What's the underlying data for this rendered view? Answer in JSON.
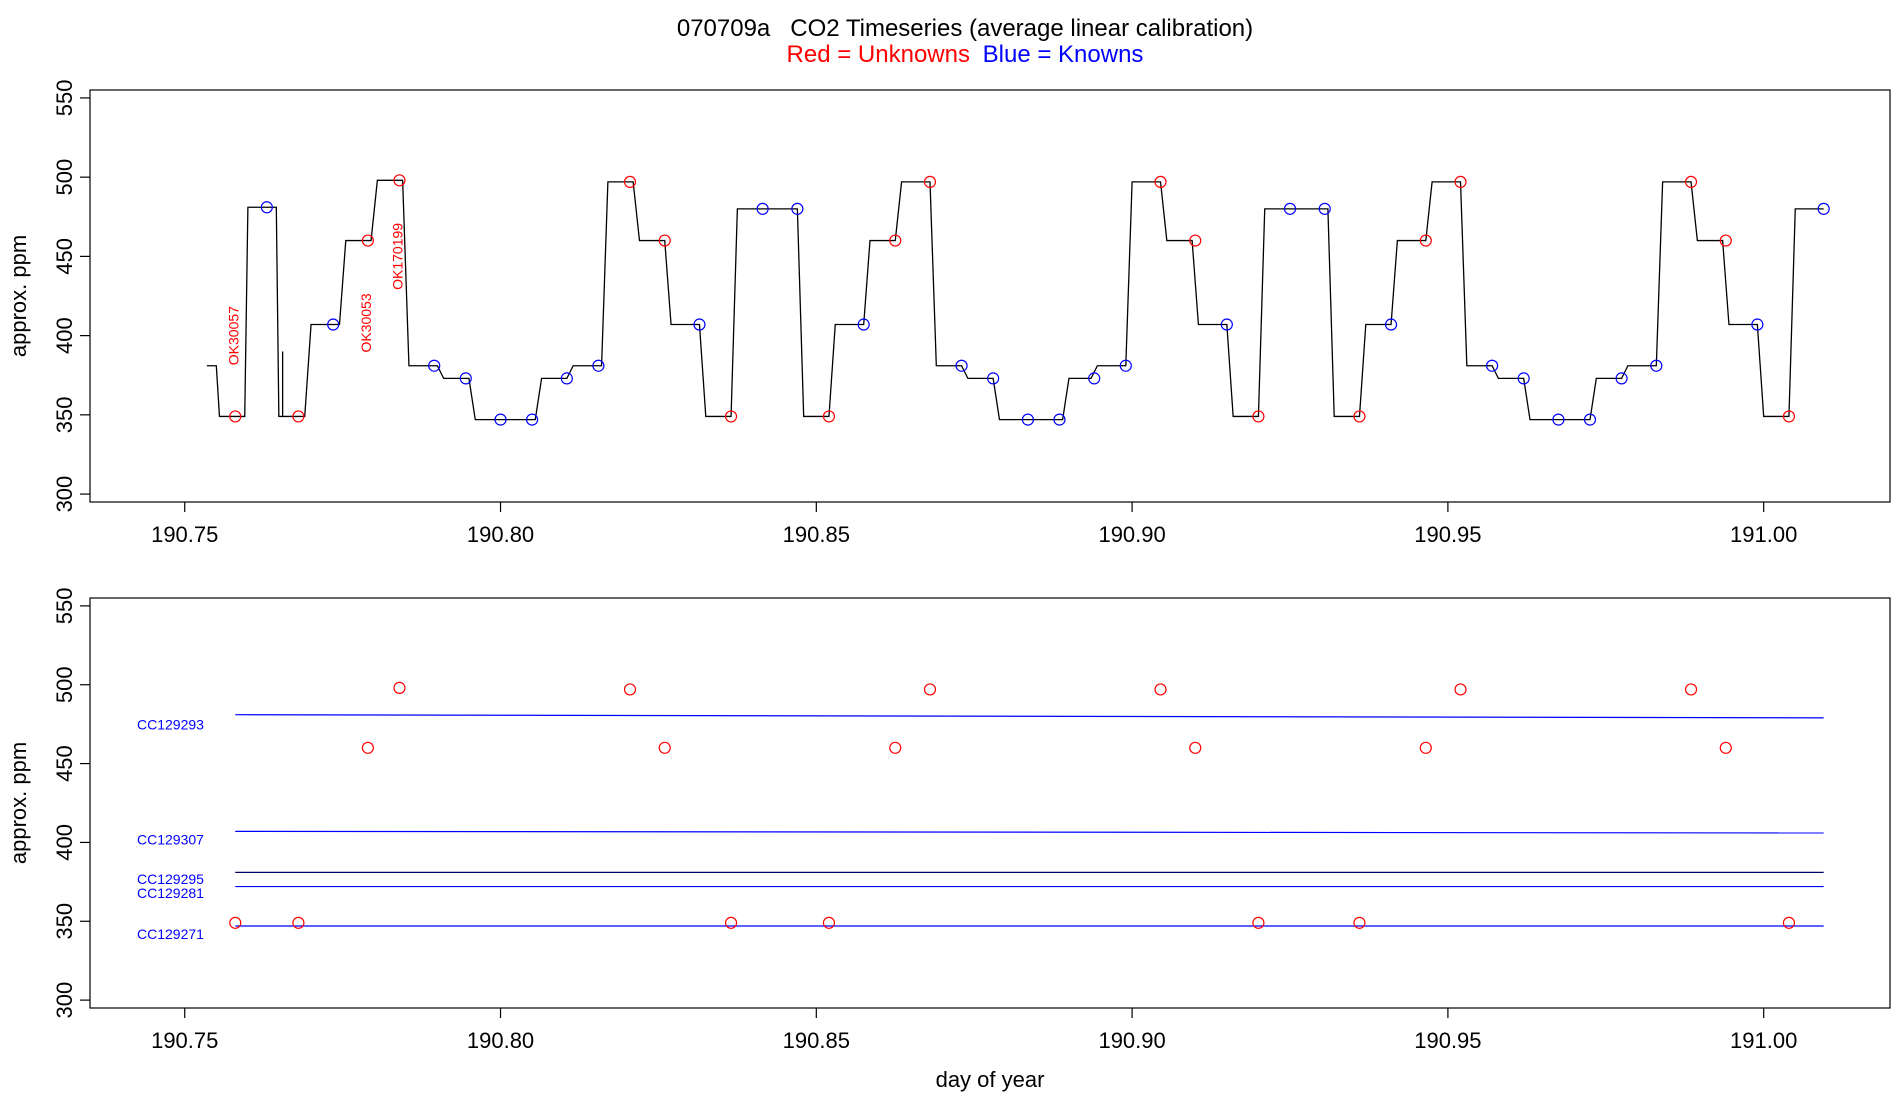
{
  "title": "070709a   CO2 Timeseries (average linear calibration)",
  "subtitle": {
    "red_text": "Red = Unknowns",
    "blue_text": "Blue = Knowns",
    "red_color": "#ff0000",
    "blue_color": "#0000ff"
  },
  "chart_data": [
    {
      "type": "line",
      "panel": "top",
      "xlabel": "",
      "ylabel": "approx. ppm",
      "xlim": [
        190.735,
        191.02
      ],
      "ylim": [
        295,
        555
      ],
      "x_ticks": [
        190.75,
        190.8,
        190.85,
        190.9,
        190.95,
        191.0
      ],
      "x_tick_labels": [
        "190.75",
        "190.80",
        "190.85",
        "190.90",
        "190.95",
        "191.00"
      ],
      "y_ticks": [
        300,
        350,
        400,
        450,
        500,
        550
      ],
      "y_tick_labels": [
        "300",
        "350",
        "400",
        "450",
        "500",
        "550"
      ],
      "grid": false,
      "trace_color": "#000000",
      "trace_start": {
        "x": 190.7535,
        "y": 381
      },
      "trace_end": 191.0095,
      "trace_initial_y": 381,
      "trace_spike": {
        "x": 190.7655,
        "y": 390
      },
      "trace_plateaus": [
        {
          "x0": 190.7555,
          "x1": 190.7595,
          "y": 349
        },
        {
          "x0": 190.76,
          "x1": 190.7645,
          "y": 481
        },
        {
          "x0": 190.7655,
          "x1": 190.769,
          "y": 349
        },
        {
          "x0": 190.77,
          "x1": 190.7745,
          "y": 407
        },
        {
          "x0": 190.7755,
          "x1": 190.7795,
          "y": 460
        },
        {
          "x0": 190.7805,
          "x1": 190.7845,
          "y": 498
        },
        {
          "x0": 190.7855,
          "x1": 190.79,
          "y": 381
        },
        {
          "x0": 190.791,
          "x1": 190.795,
          "y": 373
        },
        {
          "x0": 190.796,
          "x1": 190.8055,
          "y": 347
        },
        {
          "x0": 190.8065,
          "x1": 190.8105,
          "y": 373
        },
        {
          "x0": 190.8115,
          "x1": 190.816,
          "y": 381
        },
        {
          "x0": 190.817,
          "x1": 190.821,
          "y": 497
        },
        {
          "x0": 190.822,
          "x1": 190.826,
          "y": 460
        },
        {
          "x0": 190.827,
          "x1": 190.8315,
          "y": 407
        },
        {
          "x0": 190.8325,
          "x1": 190.8365,
          "y": 349
        },
        {
          "x0": 190.8375,
          "x1": 190.847,
          "y": 480
        },
        {
          "x0": 190.848,
          "x1": 190.852,
          "y": 349
        },
        {
          "x0": 190.853,
          "x1": 190.8575,
          "y": 407
        },
        {
          "x0": 190.8585,
          "x1": 190.8625,
          "y": 460
        },
        {
          "x0": 190.8635,
          "x1": 190.868,
          "y": 497
        },
        {
          "x0": 190.869,
          "x1": 190.873,
          "y": 381
        },
        {
          "x0": 190.874,
          "x1": 190.878,
          "y": 373
        },
        {
          "x0": 190.879,
          "x1": 190.889,
          "y": 347
        },
        {
          "x0": 190.89,
          "x1": 190.8935,
          "y": 373
        },
        {
          "x0": 190.8945,
          "x1": 190.899,
          "y": 381
        },
        {
          "x0": 190.9,
          "x1": 190.9045,
          "y": 497
        },
        {
          "x0": 190.9055,
          "x1": 190.9095,
          "y": 460
        },
        {
          "x0": 190.9105,
          "x1": 190.915,
          "y": 407
        },
        {
          "x0": 190.916,
          "x1": 190.92,
          "y": 349
        },
        {
          "x0": 190.921,
          "x1": 190.931,
          "y": 480
        },
        {
          "x0": 190.932,
          "x1": 190.936,
          "y": 349
        },
        {
          "x0": 190.937,
          "x1": 190.941,
          "y": 407
        },
        {
          "x0": 190.942,
          "x1": 190.9465,
          "y": 460
        },
        {
          "x0": 190.9475,
          "x1": 190.952,
          "y": 497
        },
        {
          "x0": 190.953,
          "x1": 190.957,
          "y": 381
        },
        {
          "x0": 190.958,
          "x1": 190.962,
          "y": 373
        },
        {
          "x0": 190.963,
          "x1": 190.9725,
          "y": 347
        },
        {
          "x0": 190.9735,
          "x1": 190.9775,
          "y": 373
        },
        {
          "x0": 190.9785,
          "x1": 190.983,
          "y": 381
        },
        {
          "x0": 190.984,
          "x1": 190.9885,
          "y": 497
        },
        {
          "x0": 190.9895,
          "x1": 190.9935,
          "y": 460
        },
        {
          "x0": 190.9945,
          "x1": 190.999,
          "y": 407
        },
        {
          "x0": 191.0,
          "x1": 191.004,
          "y": 349
        },
        {
          "x0": 191.005,
          "x1": 191.0095,
          "y": 480
        }
      ],
      "unknown_points": [
        [
          190.758,
          349
        ],
        [
          190.768,
          349
        ],
        [
          190.779,
          460
        ],
        [
          190.784,
          498
        ],
        [
          190.8205,
          497
        ],
        [
          190.826,
          460
        ],
        [
          190.8365,
          349
        ],
        [
          190.852,
          349
        ],
        [
          190.8625,
          460
        ],
        [
          190.868,
          497
        ],
        [
          190.9045,
          497
        ],
        [
          190.91,
          460
        ],
        [
          190.92,
          349
        ],
        [
          190.936,
          349
        ],
        [
          190.9465,
          460
        ],
        [
          190.952,
          497
        ],
        [
          190.9885,
          497
        ],
        [
          190.994,
          460
        ],
        [
          191.004,
          349
        ]
      ],
      "known_points": [
        [
          190.763,
          481
        ],
        [
          190.7735,
          407
        ],
        [
          190.7895,
          381
        ],
        [
          190.7945,
          373
        ],
        [
          190.8,
          347
        ],
        [
          190.805,
          347
        ],
        [
          190.8105,
          373
        ],
        [
          190.8155,
          381
        ],
        [
          190.8315,
          407
        ],
        [
          190.8415,
          480
        ],
        [
          190.847,
          480
        ],
        [
          190.8575,
          407
        ],
        [
          190.873,
          381
        ],
        [
          190.878,
          373
        ],
        [
          190.8835,
          347
        ],
        [
          190.8885,
          347
        ],
        [
          190.894,
          373
        ],
        [
          190.899,
          381
        ],
        [
          190.915,
          407
        ],
        [
          190.925,
          480
        ],
        [
          190.9305,
          480
        ],
        [
          190.941,
          407
        ],
        [
          190.957,
          381
        ],
        [
          190.962,
          373
        ],
        [
          190.9675,
          347
        ],
        [
          190.9725,
          347
        ],
        [
          190.9775,
          373
        ],
        [
          190.983,
          381
        ],
        [
          190.999,
          407
        ],
        [
          191.0095,
          480
        ]
      ],
      "annotations": [
        {
          "text": "OK30057",
          "x": 190.7585,
          "y": 400
        },
        {
          "text": "OK30053",
          "x": 190.7795,
          "y": 408
        },
        {
          "text": "OK170199",
          "x": 190.7845,
          "y": 450
        }
      ]
    },
    {
      "type": "scatter",
      "panel": "bottom",
      "xlabel": "day of year",
      "ylabel": "approx. ppm",
      "xlim": [
        190.735,
        191.02
      ],
      "ylim": [
        295,
        555
      ],
      "x_ticks": [
        190.75,
        190.8,
        190.85,
        190.9,
        190.95,
        191.0
      ],
      "x_tick_labels": [
        "190.75",
        "190.80",
        "190.85",
        "190.90",
        "190.95",
        "191.00"
      ],
      "y_ticks": [
        300,
        350,
        400,
        450,
        500,
        550
      ],
      "y_tick_labels": [
        "300",
        "350",
        "400",
        "450",
        "500",
        "550"
      ],
      "grid": false,
      "unknown_points": [
        [
          190.758,
          349
        ],
        [
          190.768,
          349
        ],
        [
          190.779,
          460
        ],
        [
          190.784,
          498
        ],
        [
          190.8205,
          497
        ],
        [
          190.826,
          460
        ],
        [
          190.8365,
          349
        ],
        [
          190.852,
          349
        ],
        [
          190.8625,
          460
        ],
        [
          190.868,
          497
        ],
        [
          190.9045,
          497
        ],
        [
          190.91,
          460
        ],
        [
          190.92,
          349
        ],
        [
          190.936,
          349
        ],
        [
          190.9465,
          460
        ],
        [
          190.952,
          497
        ],
        [
          190.9885,
          497
        ],
        [
          190.994,
          460
        ],
        [
          191.004,
          349
        ]
      ],
      "reference_lines": [
        {
          "name": "CC129293",
          "x0": 190.758,
          "x1": 191.0095,
          "y0": 481,
          "y1": 479,
          "color": "#0000ff"
        },
        {
          "name": "CC129307",
          "x0": 190.758,
          "x1": 191.0095,
          "y0": 407,
          "y1": 406,
          "color": "#0000ff"
        },
        {
          "name": "CC129295",
          "x0": 190.758,
          "x1": 191.0095,
          "y0": 381,
          "y1": 381,
          "color": "#000066"
        },
        {
          "name": "CC129281",
          "x0": 190.758,
          "x1": 191.0095,
          "y0": 372,
          "y1": 372,
          "color": "#0000ff"
        },
        {
          "name": "CC129271",
          "x0": 190.758,
          "x1": 191.0095,
          "y0": 347,
          "y1": 347,
          "color": "#0000ff"
        }
      ],
      "line_labels": [
        {
          "text": "CC129293",
          "y": 474
        },
        {
          "text": "CC129307",
          "y": 401
        },
        {
          "text": "CC129295",
          "y": 376
        },
        {
          "text": "CC129281",
          "y": 367
        },
        {
          "text": "CC129271",
          "y": 341
        }
      ]
    }
  ]
}
